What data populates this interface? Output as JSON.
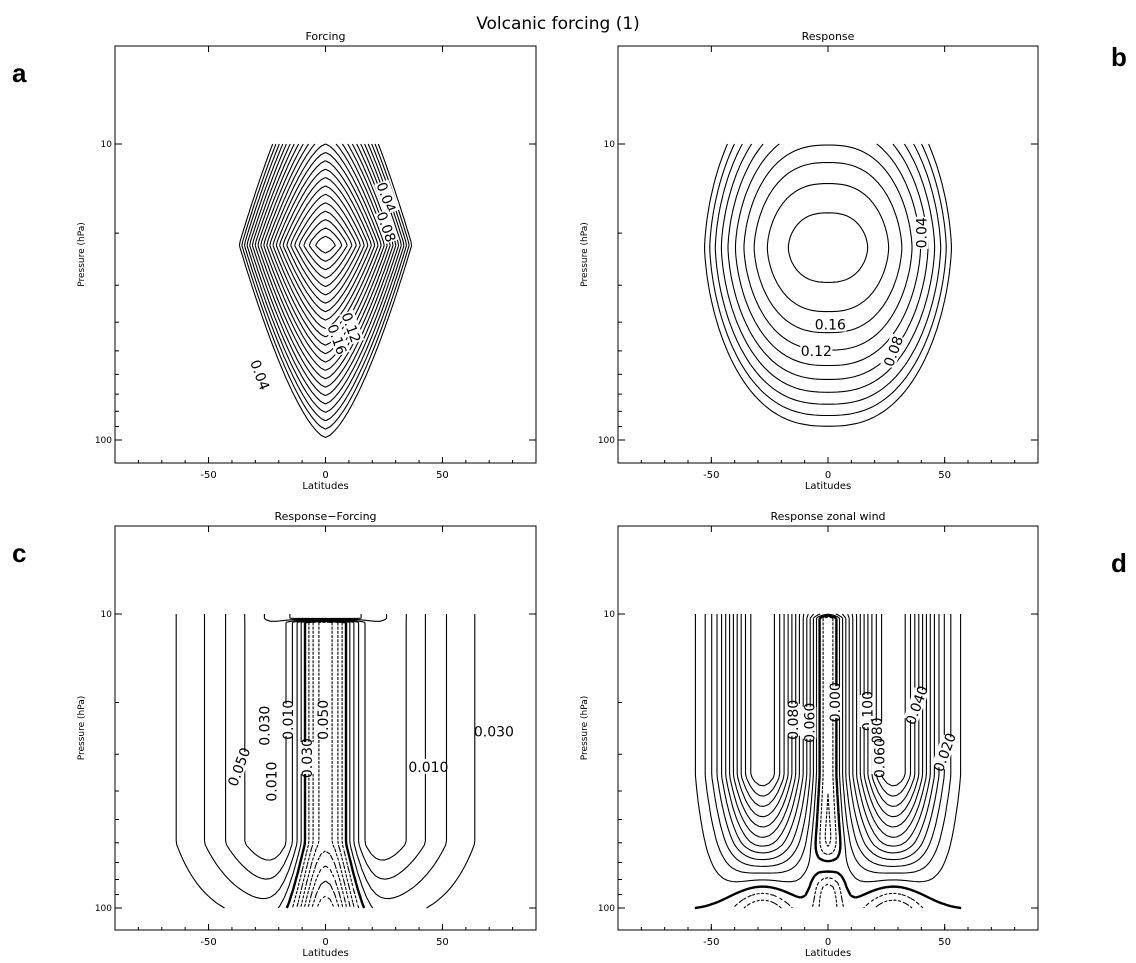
{
  "figure_title": "Volcanic forcing  (1)",
  "panel_letters": [
    "a",
    "b",
    "c",
    "d"
  ],
  "chart_data": [
    {
      "type": "contour",
      "panel": "a",
      "title": "Forcing",
      "xlabel": "Latitudes",
      "ylabel": "Pressure (hPa)",
      "xlim": [
        -90,
        90
      ],
      "ylim": [
        100,
        10
      ],
      "y_scale": "log",
      "x_ticks": [
        "-50",
        "0",
        "50"
      ],
      "y_ticks": [
        "10",
        "100"
      ],
      "contour_labels": [
        "0.04",
        "0.08",
        "0.04",
        "0.12",
        "0.16"
      ],
      "contour_levels": [
        0.01,
        0.02,
        0.03,
        0.04,
        0.05,
        0.06,
        0.07,
        0.08,
        0.09,
        0.1,
        0.11,
        0.12,
        0.13,
        0.14,
        0.15,
        0.16,
        0.17,
        0.18,
        0.19,
        0.2,
        0.21,
        0.22,
        0.23
      ],
      "field": {
        "peak_lat": 0,
        "peak_pressure": 22,
        "max_value": 0.24,
        "lat_halfwidth": 38
      }
    },
    {
      "type": "contour",
      "panel": "b",
      "title": "Response",
      "xlabel": "Latitudes",
      "ylabel": "Pressure (hPa)",
      "xlim": [
        -90,
        90
      ],
      "ylim": [
        100,
        10
      ],
      "y_scale": "log",
      "x_ticks": [
        "-50",
        "0",
        "50"
      ],
      "y_ticks": [
        "10",
        "100"
      ],
      "contour_labels": [
        "0.04",
        "0.16",
        "0.12",
        "0.08"
      ],
      "contour_levels": [
        0.02,
        0.04,
        0.06,
        0.08,
        0.1,
        0.12,
        0.14,
        0.16,
        0.18,
        0.2
      ],
      "field": {
        "peak_lat": 0,
        "peak_pressure": 22,
        "max_value": 0.21
      }
    },
    {
      "type": "contour",
      "panel": "c",
      "title": "Response−Forcing",
      "xlabel": "Latitudes",
      "ylabel": "Pressure (hPa)",
      "xlim": [
        -90,
        90
      ],
      "ylim": [
        100,
        10
      ],
      "y_scale": "log",
      "x_ticks": [
        "-50",
        "0",
        "50"
      ],
      "y_ticks": [
        "10",
        "100"
      ],
      "contour_labels": [
        "0.050",
        "0.030",
        "0.010",
        "0.030",
        "0.050",
        "0.010",
        "0.030",
        "0.010"
      ],
      "negative_contours": "dashed",
      "contour_levels_positive": [
        0.01,
        0.02,
        0.03,
        0.04,
        0.05,
        0.06
      ],
      "contour_levels_negative": [
        -0.01,
        -0.02,
        -0.03,
        -0.04,
        -0.05,
        -0.06,
        -0.07,
        -0.08,
        -0.09
      ]
    },
    {
      "type": "contour",
      "panel": "d",
      "title": "Response zonal wind",
      "xlabel": "Latitudes",
      "ylabel": "Pressure (hPa)",
      "xlim": [
        -90,
        90
      ],
      "ylim": [
        100,
        10
      ],
      "y_scale": "log",
      "x_ticks": [
        "-50",
        "0",
        "50"
      ],
      "y_ticks": [
        "10",
        "100"
      ],
      "contour_labels": [
        "0.000",
        "0.100",
        "0.080",
        "0.060",
        "0.040",
        "0.020",
        "0.060",
        "0.080"
      ],
      "negative_contours": "dashed",
      "contour_levels_positive": [
        0.01,
        0.02,
        0.03,
        0.04,
        0.05,
        0.06,
        0.07,
        0.08,
        0.09,
        0.1,
        0.11,
        0.12
      ],
      "contour_levels_negative": [
        -0.01,
        -0.02
      ]
    }
  ]
}
